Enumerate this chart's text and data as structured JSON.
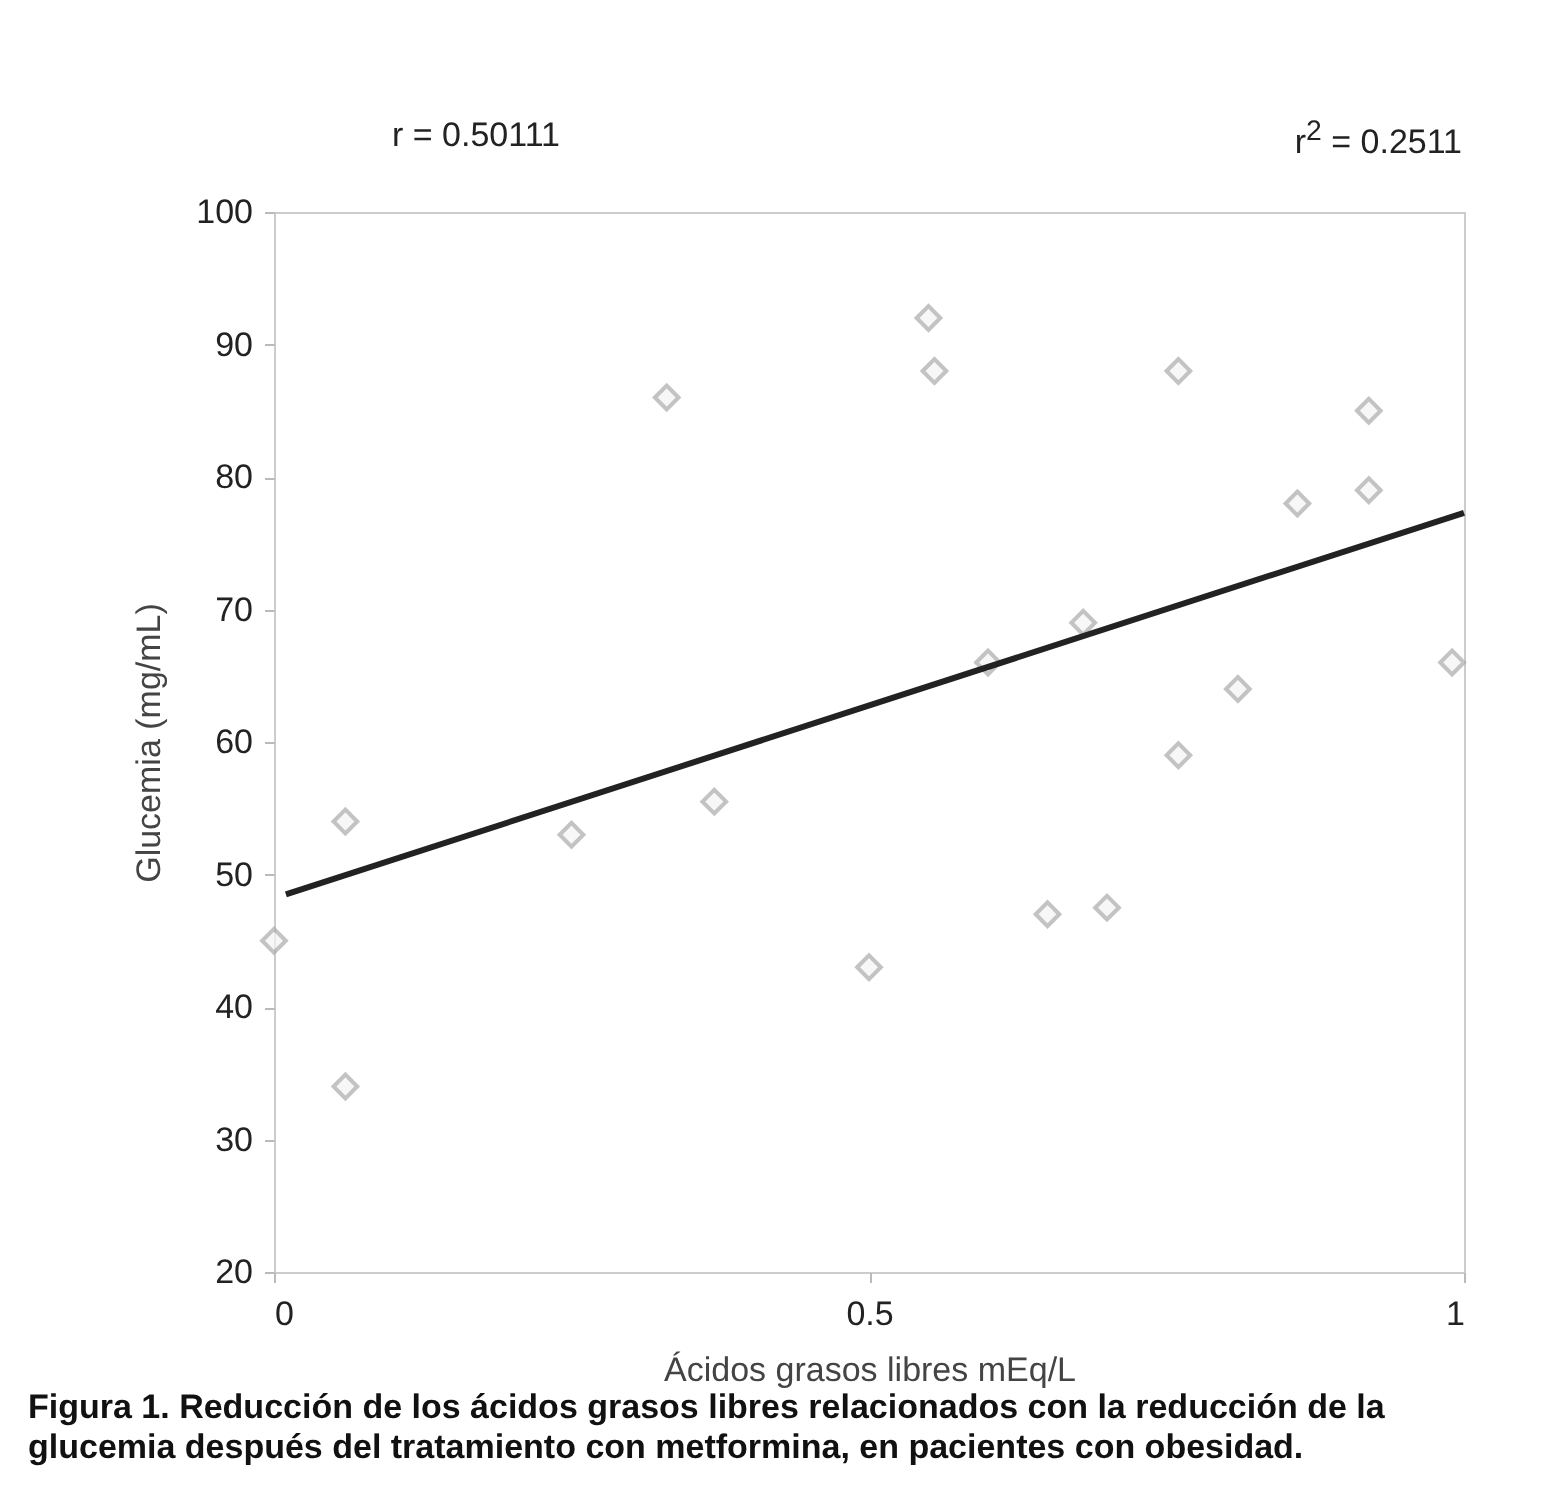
{
  "chart_data": {
    "type": "scatter",
    "xlabel": "Ácidos grasos libres mEq/L",
    "ylabel": "Glucemia (mg/mL)",
    "xlim": [
      0,
      1
    ],
    "xticks": [
      0,
      0.5,
      1
    ],
    "ylim": [
      20,
      100
    ],
    "yticks": [
      20,
      30,
      40,
      50,
      60,
      70,
      80,
      90,
      100
    ],
    "grid": false,
    "series": [
      {
        "type": "scatter",
        "marker": "diamond",
        "color": "#aaaaaa",
        "x": [
          0.0,
          0.06,
          0.06,
          0.25,
          0.33,
          0.37,
          0.5,
          0.55,
          0.555,
          0.6,
          0.65,
          0.68,
          0.7,
          0.76,
          0.76,
          0.81,
          0.86,
          0.92,
          0.92,
          0.99
        ],
        "values": [
          45,
          54,
          34,
          53,
          86,
          55.5,
          43,
          92,
          88,
          66,
          47,
          69,
          47.5,
          59,
          88,
          64,
          78,
          85,
          79,
          66
        ]
      },
      {
        "type": "line",
        "color": "#222222",
        "x": [
          0.01,
          1
        ],
        "values": [
          48.5,
          77.3
        ]
      }
    ],
    "annotations": [
      "r = 0.50111",
      "r$^{2}$ = 0.2511",
      "Figura 1. Reducción de los ácidos grasos libres relacionados con la reducción de la glucemia después del tratamiento con metformina, en pacientes con obesidad."
    ]
  }
}
